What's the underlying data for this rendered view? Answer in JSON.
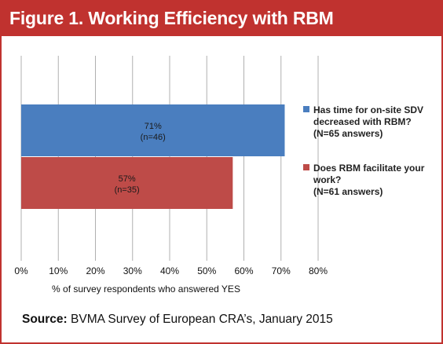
{
  "header": {
    "title": "Figure 1. Working Efficiency with RBM"
  },
  "source": {
    "label": "Source:",
    "text": " BVMA Survey of European CRA’s, January 2015"
  },
  "colors": {
    "frame": "#c0322f",
    "series1": "#4a7ebf",
    "series2": "#be4b48"
  },
  "chart_data": {
    "type": "bar",
    "orientation": "horizontal",
    "xlabel": "% of survey respondents who answered YES",
    "xlim": [
      0,
      80
    ],
    "ticks": [
      "0%",
      "10%",
      "20%",
      "30%",
      "40%",
      "50%",
      "60%",
      "70%",
      "80%"
    ],
    "grid": true,
    "legend_position": "right",
    "series": [
      {
        "name": "Has time for on-site SDV decreased with RBM? (N=65 answers)",
        "legend_lines": [
          "Has time for on-site SDV",
          "decreased with RBM?",
          "(N=65 answers)"
        ],
        "value": 71,
        "label_lines": [
          "71%",
          "(n=46)"
        ],
        "color": "#4a7ebf"
      },
      {
        "name": "Does RBM facilitate your work? (N=61 answers)",
        "legend_lines": [
          "Does RBM facilitate your",
          "work?",
          "(N=61 answers)"
        ],
        "value": 57,
        "label_lines": [
          "57%",
          "(n=35)"
        ],
        "color": "#be4b48"
      }
    ]
  }
}
